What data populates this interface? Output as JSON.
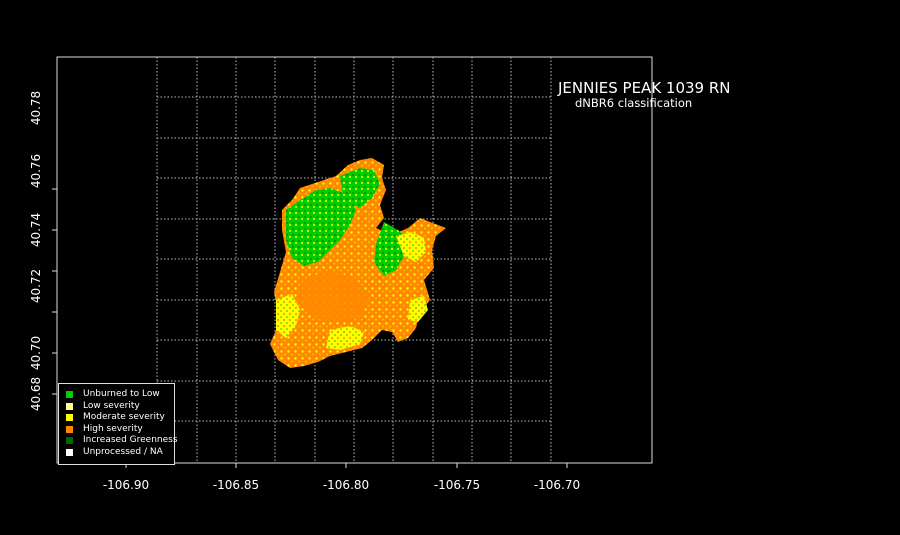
{
  "map": {
    "title": "JENNIES PEAK 1039 RN",
    "subtitle": "dNBR6 classification",
    "x_ticks": [
      "-106.90",
      "-106.85",
      "-106.80",
      "-106.75",
      "-106.70"
    ],
    "y_ticks": [
      "40.68",
      "40.70",
      "40.72",
      "40.74",
      "40.76",
      "40.78"
    ],
    "grid": true
  },
  "legend": {
    "items": [
      {
        "label": "Unburned to Low",
        "color": "#00cc00"
      },
      {
        "label": "Low severity",
        "color": "#ffff99"
      },
      {
        "label": "Moderate severity",
        "color": "#ffff00"
      },
      {
        "label": "High severity",
        "color": "#ff8800"
      },
      {
        "label": "Increased Greenness",
        "color": "#006400"
      },
      {
        "label": "Unprocessed / NA",
        "color": "#ffffff"
      }
    ]
  }
}
